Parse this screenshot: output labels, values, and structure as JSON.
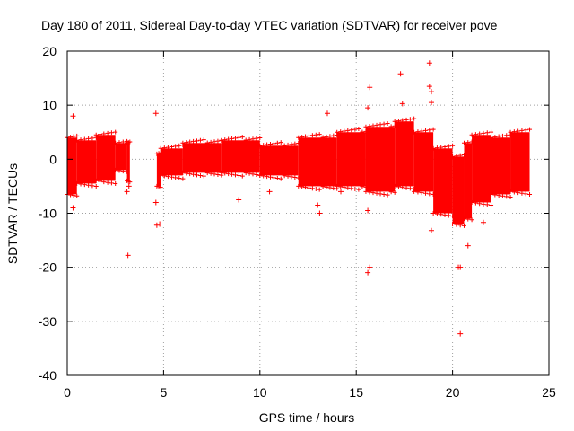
{
  "chart_data": {
    "type": "scatter",
    "title": "Day 180 of 2011, Sidereal Day-to-day VTEC variation (SDTVAR) for receiver pove",
    "xlabel": "GPS time / hours",
    "ylabel": "SDTVAR / TECUs",
    "xlim": [
      0,
      25
    ],
    "ylim": [
      -40,
      20
    ],
    "xticks": [
      0,
      5,
      10,
      15,
      20,
      25
    ],
    "yticks": [
      -40,
      -30,
      -20,
      -10,
      0,
      10,
      20
    ],
    "grid": true,
    "legend": "none",
    "marker": "+",
    "color": "#ff0000",
    "bands": [
      {
        "x": [
          0.0,
          0.5
        ],
        "low": -6.5,
        "high": 4.0
      },
      {
        "x": [
          0.5,
          1.5
        ],
        "low": -4.5,
        "high": 3.5
      },
      {
        "x": [
          1.5,
          2.5
        ],
        "low": -4.0,
        "high": 4.5
      },
      {
        "x": [
          2.5,
          3.1
        ],
        "low": -2.0,
        "high": 3.0
      },
      {
        "x": [
          3.1,
          3.25
        ],
        "low": -4.0,
        "high": 3.0
      },
      {
        "x": [
          4.65,
          4.85
        ],
        "low": -5.0,
        "high": 1.0
      },
      {
        "x": [
          4.85,
          6.0
        ],
        "low": -3.0,
        "high": 2.0
      },
      {
        "x": [
          6.0,
          8.0
        ],
        "low": -2.5,
        "high": 3.0
      },
      {
        "x": [
          8.0,
          10.0
        ],
        "low": -2.5,
        "high": 3.5
      },
      {
        "x": [
          10.0,
          12.0
        ],
        "low": -3.0,
        "high": 2.5
      },
      {
        "x": [
          12.0,
          14.0
        ],
        "low": -5.0,
        "high": 4.0
      },
      {
        "x": [
          14.0,
          15.5
        ],
        "low": -5.0,
        "high": 5.0
      },
      {
        "x": [
          15.5,
          17.0
        ],
        "low": -6.0,
        "high": 6.0
      },
      {
        "x": [
          17.0,
          18.0
        ],
        "low": -5.0,
        "high": 7.0
      },
      {
        "x": [
          18.0,
          19.0
        ],
        "low": -6.0,
        "high": 5.0
      },
      {
        "x": [
          19.0,
          20.0
        ],
        "low": -10.0,
        "high": 2.0
      },
      {
        "x": [
          20.0,
          20.6
        ],
        "low": -12.0,
        "high": 0.5
      },
      {
        "x": [
          20.6,
          21.0
        ],
        "low": -11.0,
        "high": 3.0
      },
      {
        "x": [
          21.0,
          22.0
        ],
        "low": -8.0,
        "high": 4.5
      },
      {
        "x": [
          22.0,
          23.0
        ],
        "low": -6.5,
        "high": 4.0
      },
      {
        "x": [
          23.0,
          24.0
        ],
        "low": -6.0,
        "high": 5.0
      }
    ],
    "outliers": [
      {
        "x": 0.3,
        "y": 8.0
      },
      {
        "x": 0.3,
        "y": -9.0
      },
      {
        "x": 3.15,
        "y": -17.8
      },
      {
        "x": 3.1,
        "y": -6.0
      },
      {
        "x": 3.2,
        "y": -5.0
      },
      {
        "x": 4.6,
        "y": 8.5
      },
      {
        "x": 4.6,
        "y": -8.0
      },
      {
        "x": 4.65,
        "y": -12.2
      },
      {
        "x": 4.8,
        "y": -12.0
      },
      {
        "x": 8.9,
        "y": -7.5
      },
      {
        "x": 10.5,
        "y": -6.0
      },
      {
        "x": 13.0,
        "y": -8.5
      },
      {
        "x": 13.1,
        "y": -10.0
      },
      {
        "x": 13.5,
        "y": 8.5
      },
      {
        "x": 14.2,
        "y": -6.0
      },
      {
        "x": 15.6,
        "y": -21.0
      },
      {
        "x": 15.7,
        "y": -20.0
      },
      {
        "x": 15.7,
        "y": 13.3
      },
      {
        "x": 15.6,
        "y": 9.5
      },
      {
        "x": 15.6,
        "y": -9.5
      },
      {
        "x": 17.3,
        "y": 15.8
      },
      {
        "x": 17.4,
        "y": 10.3
      },
      {
        "x": 18.8,
        "y": 17.8
      },
      {
        "x": 18.8,
        "y": 13.5
      },
      {
        "x": 18.9,
        "y": 12.5
      },
      {
        "x": 18.9,
        "y": 10.5
      },
      {
        "x": 18.9,
        "y": -13.2
      },
      {
        "x": 20.3,
        "y": -20.0
      },
      {
        "x": 20.4,
        "y": -20.0
      },
      {
        "x": 20.4,
        "y": -32.3
      },
      {
        "x": 20.8,
        "y": -16.0
      },
      {
        "x": 21.6,
        "y": -11.7
      }
    ]
  }
}
